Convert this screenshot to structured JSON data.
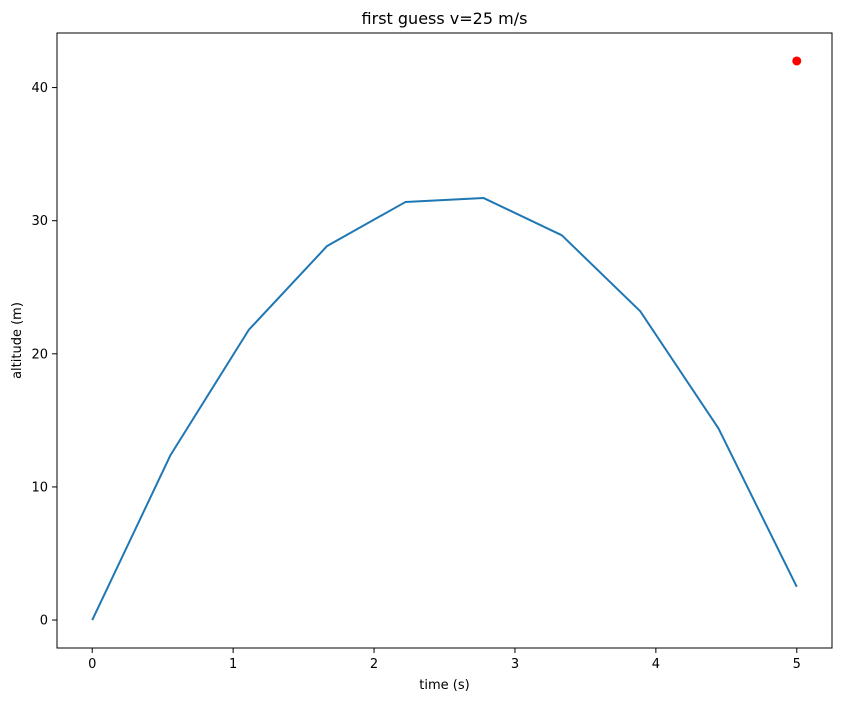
{
  "chart_data": {
    "type": "line",
    "title": "first guess v=25 m/s",
    "xlabel": "time (s)",
    "ylabel": "altitude (m)",
    "xlim": [
      -0.25,
      5.25
    ],
    "ylim": [
      -2.1,
      44.1
    ],
    "xticks": [
      0,
      1,
      2,
      3,
      4,
      5
    ],
    "yticks": [
      0,
      10,
      20,
      30,
      40
    ],
    "grid": false,
    "series": [
      {
        "type": "line",
        "color": "#1f77b4",
        "x": [
          0,
          0.556,
          1.111,
          1.667,
          2.222,
          2.778,
          3.333,
          3.889,
          4.444,
          5.0
        ],
        "y": [
          0,
          12.4,
          21.8,
          28.1,
          31.4,
          31.7,
          28.9,
          23.2,
          14.4,
          2.5
        ]
      },
      {
        "type": "scatter",
        "color": "#ff0000",
        "x": [
          5.0
        ],
        "y": [
          42.0
        ]
      }
    ]
  }
}
